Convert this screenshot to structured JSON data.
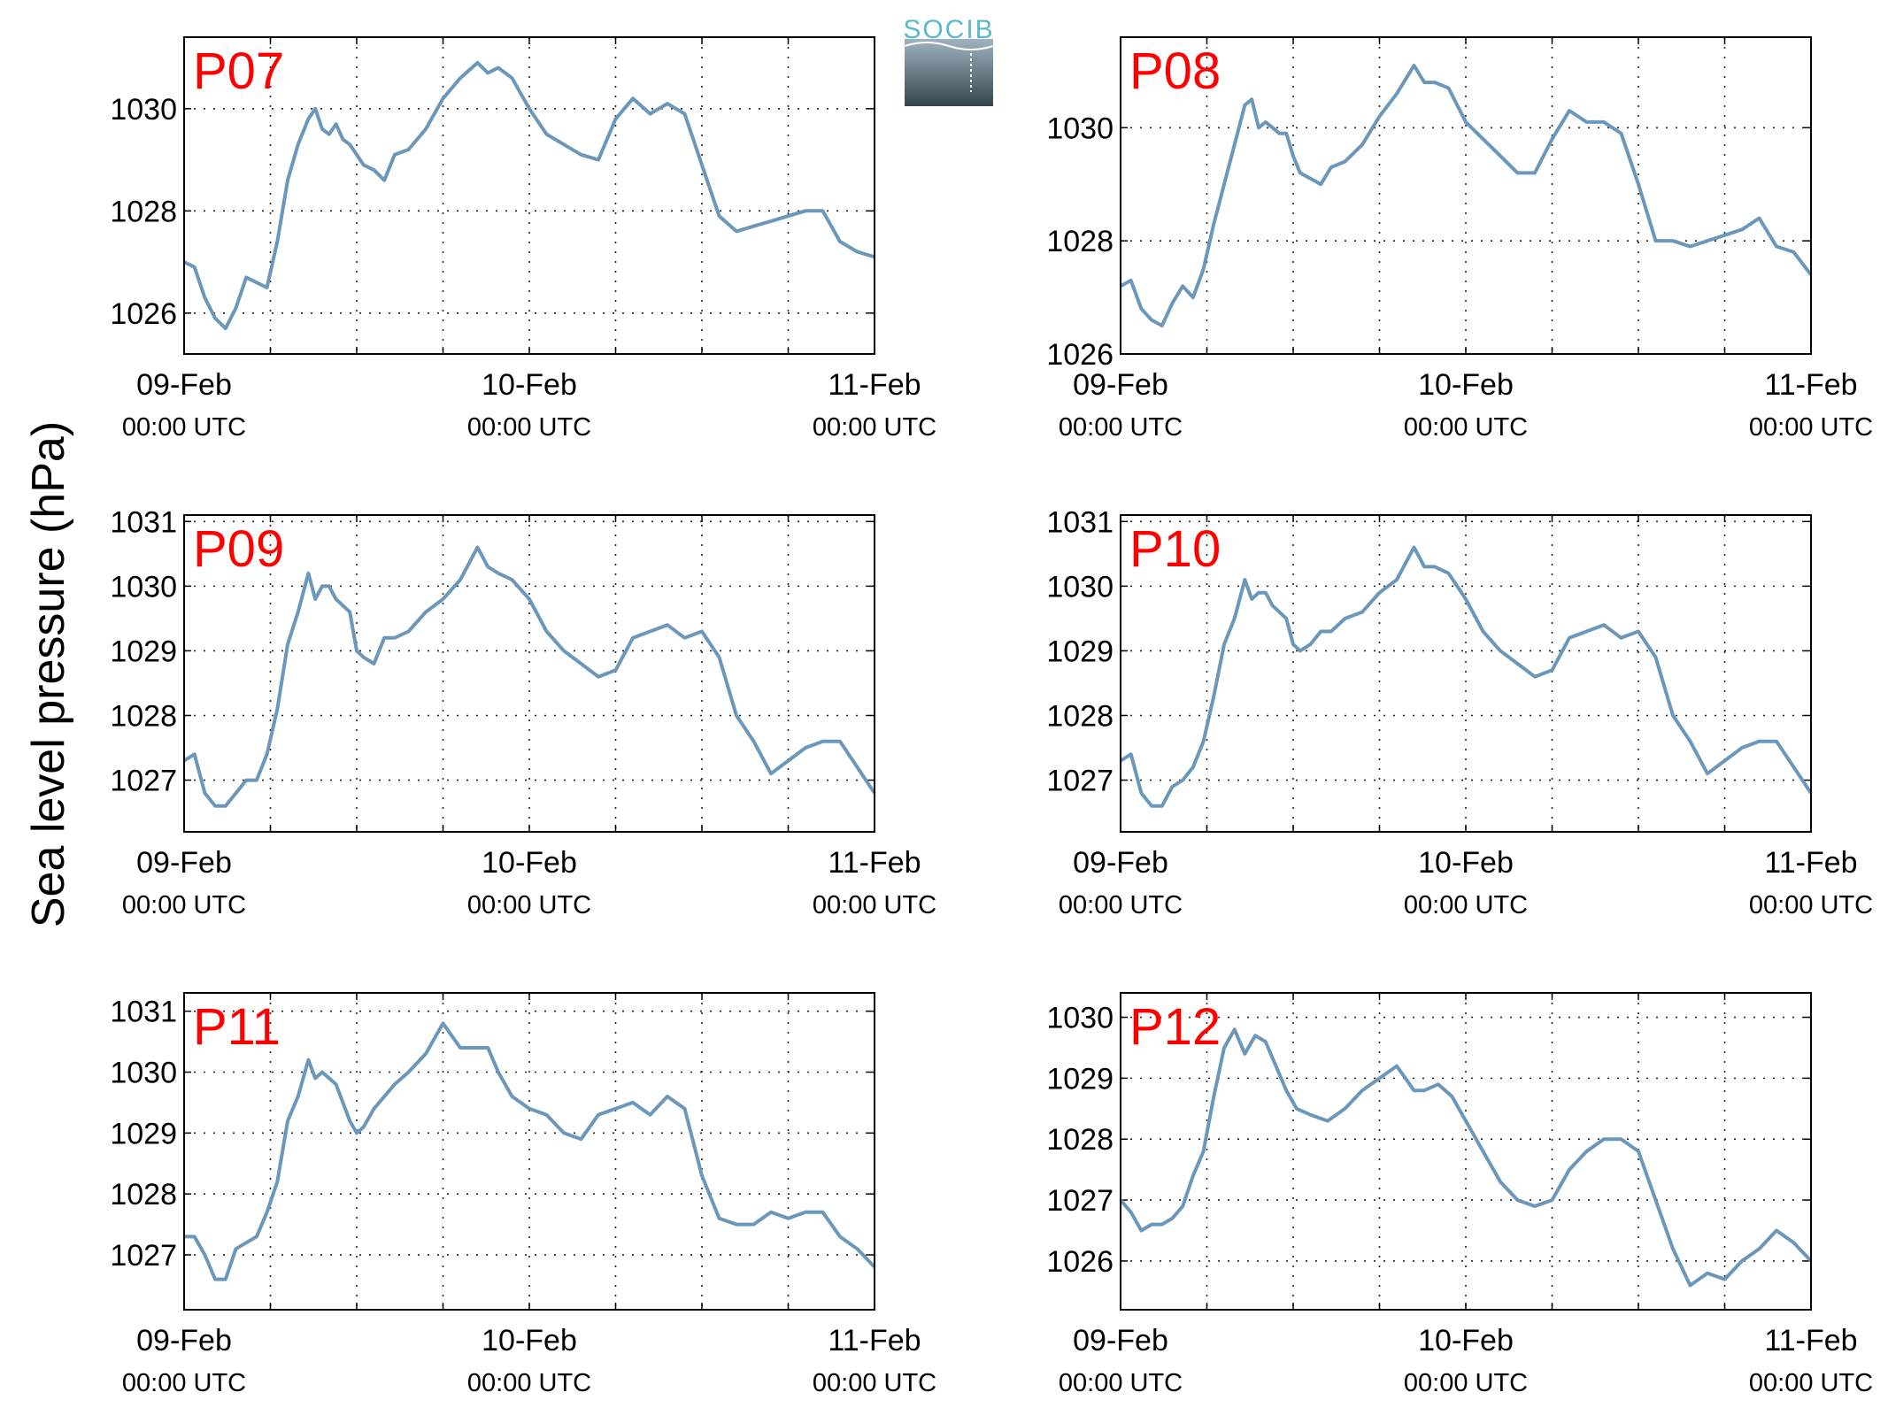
{
  "figure": {
    "ylabel": "Sea level pressure (hPa)",
    "logo_text": "SOCIB",
    "line_color": "#6b97ba",
    "panel_label_color": "#ff0000"
  },
  "chart_data": [
    {
      "type": "line",
      "panel_label": "P07",
      "ylim": [
        1025.2,
        1031.4
      ],
      "yticks": [
        1026,
        1028,
        1030
      ],
      "xlim": [
        0,
        2
      ],
      "xticks": [
        {
          "x": 0,
          "date": "09-Feb",
          "time": "00:00 UTC"
        },
        {
          "x": 1,
          "date": "10-Feb",
          "time": "00:00 UTC"
        },
        {
          "x": 2,
          "date": "11-Feb",
          "time": "00:00 UTC"
        }
      ],
      "grid": true,
      "x": [
        0,
        0.03,
        0.06,
        0.09,
        0.12,
        0.15,
        0.18,
        0.21,
        0.24,
        0.27,
        0.3,
        0.33,
        0.36,
        0.38,
        0.4,
        0.42,
        0.44,
        0.46,
        0.48,
        0.5,
        0.52,
        0.55,
        0.58,
        0.61,
        0.65,
        0.7,
        0.75,
        0.8,
        0.85,
        0.88,
        0.91,
        0.95,
        1.0,
        1.05,
        1.1,
        1.15,
        1.2,
        1.25,
        1.3,
        1.35,
        1.4,
        1.45,
        1.5,
        1.55,
        1.6,
        1.65,
        1.7,
        1.75,
        1.8,
        1.85,
        1.9,
        1.95,
        2.0
      ],
      "values": [
        1027.0,
        1026.9,
        1026.3,
        1025.9,
        1025.7,
        1026.1,
        1026.7,
        1026.6,
        1026.5,
        1027.4,
        1028.6,
        1029.3,
        1029.8,
        1030.0,
        1029.6,
        1029.5,
        1029.7,
        1029.4,
        1029.3,
        1029.1,
        1028.9,
        1028.8,
        1028.6,
        1029.1,
        1029.2,
        1029.6,
        1030.2,
        1030.6,
        1030.9,
        1030.7,
        1030.8,
        1030.6,
        1030.0,
        1029.5,
        1029.3,
        1029.1,
        1029.0,
        1029.8,
        1030.2,
        1029.9,
        1030.1,
        1029.9,
        1028.9,
        1027.9,
        1027.6,
        1027.7,
        1027.8,
        1027.9,
        1028.0,
        1028.0,
        1027.4,
        1027.2,
        1027.1
      ]
    },
    {
      "type": "line",
      "panel_label": "P08",
      "ylim": [
        1026,
        1031.6
      ],
      "yticks": [
        1026,
        1028,
        1030
      ],
      "xlim": [
        0,
        2
      ],
      "xticks": [
        {
          "x": 0,
          "date": "09-Feb",
          "time": "00:00 UTC"
        },
        {
          "x": 1,
          "date": "10-Feb",
          "time": "00:00 UTC"
        },
        {
          "x": 2,
          "date": "11-Feb",
          "time": "00:00 UTC"
        }
      ],
      "grid": true,
      "x": [
        0,
        0.03,
        0.06,
        0.09,
        0.12,
        0.15,
        0.18,
        0.21,
        0.24,
        0.27,
        0.3,
        0.33,
        0.36,
        0.38,
        0.4,
        0.42,
        0.44,
        0.46,
        0.48,
        0.5,
        0.52,
        0.55,
        0.58,
        0.61,
        0.65,
        0.7,
        0.75,
        0.8,
        0.85,
        0.88,
        0.91,
        0.95,
        1.0,
        1.05,
        1.1,
        1.15,
        1.2,
        1.25,
        1.3,
        1.35,
        1.4,
        1.45,
        1.5,
        1.55,
        1.6,
        1.65,
        1.7,
        1.75,
        1.8,
        1.85,
        1.9,
        1.95,
        2.0
      ],
      "values": [
        1027.2,
        1027.3,
        1026.8,
        1026.6,
        1026.5,
        1026.9,
        1027.2,
        1027.0,
        1027.5,
        1028.3,
        1029.0,
        1029.7,
        1030.4,
        1030.5,
        1030.0,
        1030.1,
        1030.0,
        1029.9,
        1029.9,
        1029.5,
        1029.2,
        1029.1,
        1029.0,
        1029.3,
        1029.4,
        1029.7,
        1030.2,
        1030.6,
        1031.1,
        1030.8,
        1030.8,
        1030.7,
        1030.1,
        1029.8,
        1029.5,
        1029.2,
        1029.2,
        1029.8,
        1030.3,
        1030.1,
        1030.1,
        1029.9,
        1029.0,
        1028.0,
        1028.0,
        1027.9,
        1028.0,
        1028.1,
        1028.2,
        1028.4,
        1027.9,
        1027.8,
        1027.4
      ]
    },
    {
      "type": "line",
      "panel_label": "P09",
      "ylim": [
        1026.2,
        1031.1
      ],
      "yticks": [
        1027,
        1028,
        1029,
        1030,
        1031
      ],
      "xlim": [
        0,
        2
      ],
      "xticks": [
        {
          "x": 0,
          "date": "09-Feb",
          "time": "00:00 UTC"
        },
        {
          "x": 1,
          "date": "10-Feb",
          "time": "00:00 UTC"
        },
        {
          "x": 2,
          "date": "11-Feb",
          "time": "00:00 UTC"
        }
      ],
      "grid": true,
      "x": [
        0,
        0.03,
        0.06,
        0.09,
        0.12,
        0.15,
        0.18,
        0.21,
        0.24,
        0.27,
        0.3,
        0.33,
        0.36,
        0.38,
        0.4,
        0.42,
        0.44,
        0.46,
        0.48,
        0.5,
        0.52,
        0.55,
        0.58,
        0.61,
        0.65,
        0.7,
        0.75,
        0.8,
        0.85,
        0.88,
        0.91,
        0.95,
        1.0,
        1.05,
        1.1,
        1.15,
        1.2,
        1.25,
        1.3,
        1.35,
        1.4,
        1.45,
        1.5,
        1.55,
        1.6,
        1.65,
        1.7,
        1.75,
        1.8,
        1.85,
        1.9,
        1.95,
        2.0
      ],
      "values": [
        1027.3,
        1027.4,
        1026.8,
        1026.6,
        1026.6,
        1026.8,
        1027.0,
        1027.0,
        1027.4,
        1028.1,
        1029.1,
        1029.6,
        1030.2,
        1029.8,
        1030.0,
        1030.0,
        1029.8,
        1029.7,
        1029.6,
        1029.0,
        1028.9,
        1028.8,
        1029.2,
        1029.2,
        1029.3,
        1029.6,
        1029.8,
        1030.1,
        1030.6,
        1030.3,
        1030.2,
        1030.1,
        1029.8,
        1029.3,
        1029.0,
        1028.8,
        1028.6,
        1028.7,
        1029.2,
        1029.3,
        1029.4,
        1029.2,
        1029.3,
        1028.9,
        1028.0,
        1027.6,
        1027.1,
        1027.3,
        1027.5,
        1027.6,
        1027.6,
        1027.2,
        1026.8
      ]
    },
    {
      "type": "line",
      "panel_label": "P10",
      "ylim": [
        1026.2,
        1031.1
      ],
      "yticks": [
        1027,
        1028,
        1029,
        1030,
        1031
      ],
      "xlim": [
        0,
        2
      ],
      "xticks": [
        {
          "x": 0,
          "date": "09-Feb",
          "time": "00:00 UTC"
        },
        {
          "x": 1,
          "date": "10-Feb",
          "time": "00:00 UTC"
        },
        {
          "x": 2,
          "date": "11-Feb",
          "time": "00:00 UTC"
        }
      ],
      "grid": true,
      "x": [
        0,
        0.03,
        0.06,
        0.09,
        0.12,
        0.15,
        0.18,
        0.21,
        0.24,
        0.27,
        0.3,
        0.33,
        0.36,
        0.38,
        0.4,
        0.42,
        0.44,
        0.46,
        0.48,
        0.5,
        0.52,
        0.55,
        0.58,
        0.61,
        0.65,
        0.7,
        0.75,
        0.8,
        0.85,
        0.88,
        0.91,
        0.95,
        1.0,
        1.05,
        1.1,
        1.15,
        1.2,
        1.25,
        1.3,
        1.35,
        1.4,
        1.45,
        1.5,
        1.55,
        1.6,
        1.65,
        1.7,
        1.75,
        1.8,
        1.85,
        1.9,
        1.95,
        2.0
      ],
      "values": [
        1027.3,
        1027.4,
        1026.8,
        1026.6,
        1026.6,
        1026.9,
        1027.0,
        1027.2,
        1027.6,
        1028.3,
        1029.1,
        1029.5,
        1030.1,
        1029.8,
        1029.9,
        1029.9,
        1029.7,
        1029.6,
        1029.5,
        1029.1,
        1029.0,
        1029.1,
        1029.3,
        1029.3,
        1029.5,
        1029.6,
        1029.9,
        1030.1,
        1030.6,
        1030.3,
        1030.3,
        1030.2,
        1029.8,
        1029.3,
        1029.0,
        1028.8,
        1028.6,
        1028.7,
        1029.2,
        1029.3,
        1029.4,
        1029.2,
        1029.3,
        1028.9,
        1028.0,
        1027.6,
        1027.1,
        1027.3,
        1027.5,
        1027.6,
        1027.6,
        1027.2,
        1026.8
      ]
    },
    {
      "type": "line",
      "panel_label": "P11",
      "ylim": [
        1026.1,
        1031.3
      ],
      "yticks": [
        1027,
        1028,
        1029,
        1030,
        1031
      ],
      "xlim": [
        0,
        2
      ],
      "xticks": [
        {
          "x": 0,
          "date": "09-Feb",
          "time": "00:00 UTC"
        },
        {
          "x": 1,
          "date": "10-Feb",
          "time": "00:00 UTC"
        },
        {
          "x": 2,
          "date": "11-Feb",
          "time": "00:00 UTC"
        }
      ],
      "grid": true,
      "x": [
        0,
        0.03,
        0.06,
        0.09,
        0.12,
        0.15,
        0.18,
        0.21,
        0.24,
        0.27,
        0.3,
        0.33,
        0.36,
        0.38,
        0.4,
        0.42,
        0.44,
        0.46,
        0.48,
        0.5,
        0.52,
        0.55,
        0.58,
        0.61,
        0.65,
        0.7,
        0.75,
        0.8,
        0.85,
        0.88,
        0.91,
        0.95,
        1.0,
        1.05,
        1.1,
        1.15,
        1.2,
        1.25,
        1.3,
        1.35,
        1.4,
        1.45,
        1.5,
        1.55,
        1.6,
        1.65,
        1.7,
        1.75,
        1.8,
        1.85,
        1.9,
        1.95,
        2.0
      ],
      "values": [
        1027.3,
        1027.3,
        1027.0,
        1026.6,
        1026.6,
        1027.1,
        1027.2,
        1027.3,
        1027.7,
        1028.2,
        1029.2,
        1029.6,
        1030.2,
        1029.9,
        1030.0,
        1029.9,
        1029.8,
        1029.5,
        1029.2,
        1029.0,
        1029.1,
        1029.4,
        1029.6,
        1029.8,
        1030.0,
        1030.3,
        1030.8,
        1030.4,
        1030.4,
        1030.4,
        1030.0,
        1029.6,
        1029.4,
        1029.3,
        1029.0,
        1028.9,
        1029.3,
        1029.4,
        1029.5,
        1029.3,
        1029.6,
        1029.4,
        1028.3,
        1027.6,
        1027.5,
        1027.5,
        1027.7,
        1027.6,
        1027.7,
        1027.7,
        1027.3,
        1027.1,
        1026.8
      ]
    },
    {
      "type": "line",
      "panel_label": "P12",
      "ylim": [
        1025.2,
        1030.4
      ],
      "yticks": [
        1026,
        1027,
        1028,
        1029,
        1030
      ],
      "xlim": [
        0,
        2
      ],
      "xticks": [
        {
          "x": 0,
          "date": "09-Feb",
          "time": "00:00 UTC"
        },
        {
          "x": 1,
          "date": "10-Feb",
          "time": "00:00 UTC"
        },
        {
          "x": 2,
          "date": "11-Feb",
          "time": "00:00 UTC"
        }
      ],
      "grid": true,
      "x": [
        0,
        0.03,
        0.06,
        0.09,
        0.12,
        0.15,
        0.18,
        0.21,
        0.24,
        0.27,
        0.3,
        0.33,
        0.36,
        0.39,
        0.42,
        0.45,
        0.48,
        0.51,
        0.55,
        0.6,
        0.65,
        0.7,
        0.75,
        0.8,
        0.85,
        0.88,
        0.92,
        0.96,
        1.0,
        1.05,
        1.1,
        1.15,
        1.2,
        1.25,
        1.3,
        1.35,
        1.4,
        1.45,
        1.5,
        1.55,
        1.6,
        1.65,
        1.7,
        1.75,
        1.8,
        1.85,
        1.9,
        1.95,
        2.0
      ],
      "values": [
        1027.0,
        1026.8,
        1026.5,
        1026.6,
        1026.6,
        1026.7,
        1026.9,
        1027.4,
        1027.8,
        1028.7,
        1029.5,
        1029.8,
        1029.4,
        1029.7,
        1029.6,
        1029.2,
        1028.8,
        1028.5,
        1028.4,
        1028.3,
        1028.5,
        1028.8,
        1029.0,
        1029.2,
        1028.8,
        1028.8,
        1028.9,
        1028.7,
        1028.3,
        1027.8,
        1027.3,
        1027.0,
        1026.9,
        1027.0,
        1027.5,
        1027.8,
        1028.0,
        1028.0,
        1027.8,
        1027.0,
        1026.2,
        1025.6,
        1025.8,
        1025.7,
        1026.0,
        1026.2,
        1026.5,
        1026.3,
        1026.0
      ]
    }
  ]
}
